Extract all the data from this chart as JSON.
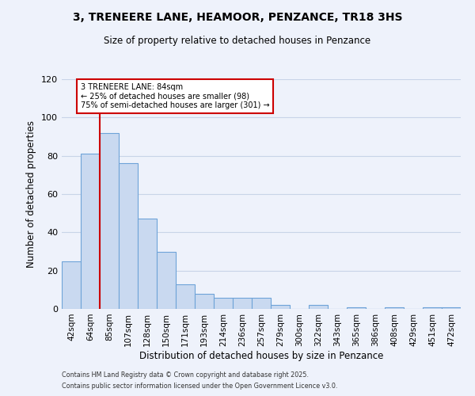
{
  "title1": "3, TRENEERE LANE, HEAMOOR, PENZANCE, TR18 3HS",
  "title2": "Size of property relative to detached houses in Penzance",
  "xlabel": "Distribution of detached houses by size in Penzance",
  "ylabel": "Number of detached properties",
  "bin_labels": [
    "42sqm",
    "64sqm",
    "85sqm",
    "107sqm",
    "128sqm",
    "150sqm",
    "171sqm",
    "193sqm",
    "214sqm",
    "236sqm",
    "257sqm",
    "279sqm",
    "300sqm",
    "322sqm",
    "343sqm",
    "365sqm",
    "386sqm",
    "408sqm",
    "429sqm",
    "451sqm",
    "472sqm"
  ],
  "bar_values": [
    25,
    81,
    92,
    76,
    47,
    30,
    13,
    8,
    6,
    6,
    6,
    2,
    0,
    2,
    0,
    1,
    0,
    1,
    0,
    1,
    1
  ],
  "bar_color": "#c9d9f0",
  "bar_edgecolor": "#6ea3d8",
  "vline_x_index": 2,
  "vline_color": "#cc0000",
  "annotation_title": "3 TRENEERE LANE: 84sqm",
  "annotation_line1": "← 25% of detached houses are smaller (98)",
  "annotation_line2": "75% of semi-detached houses are larger (301) →",
  "annotation_box_edgecolor": "#cc0000",
  "ylim": [
    0,
    120
  ],
  "yticks": [
    0,
    20,
    40,
    60,
    80,
    100,
    120
  ],
  "footer1": "Contains HM Land Registry data © Crown copyright and database right 2025.",
  "footer2": "Contains public sector information licensed under the Open Government Licence v3.0.",
  "background_color": "#eef2fb",
  "grid_color": "#c8d4e8"
}
